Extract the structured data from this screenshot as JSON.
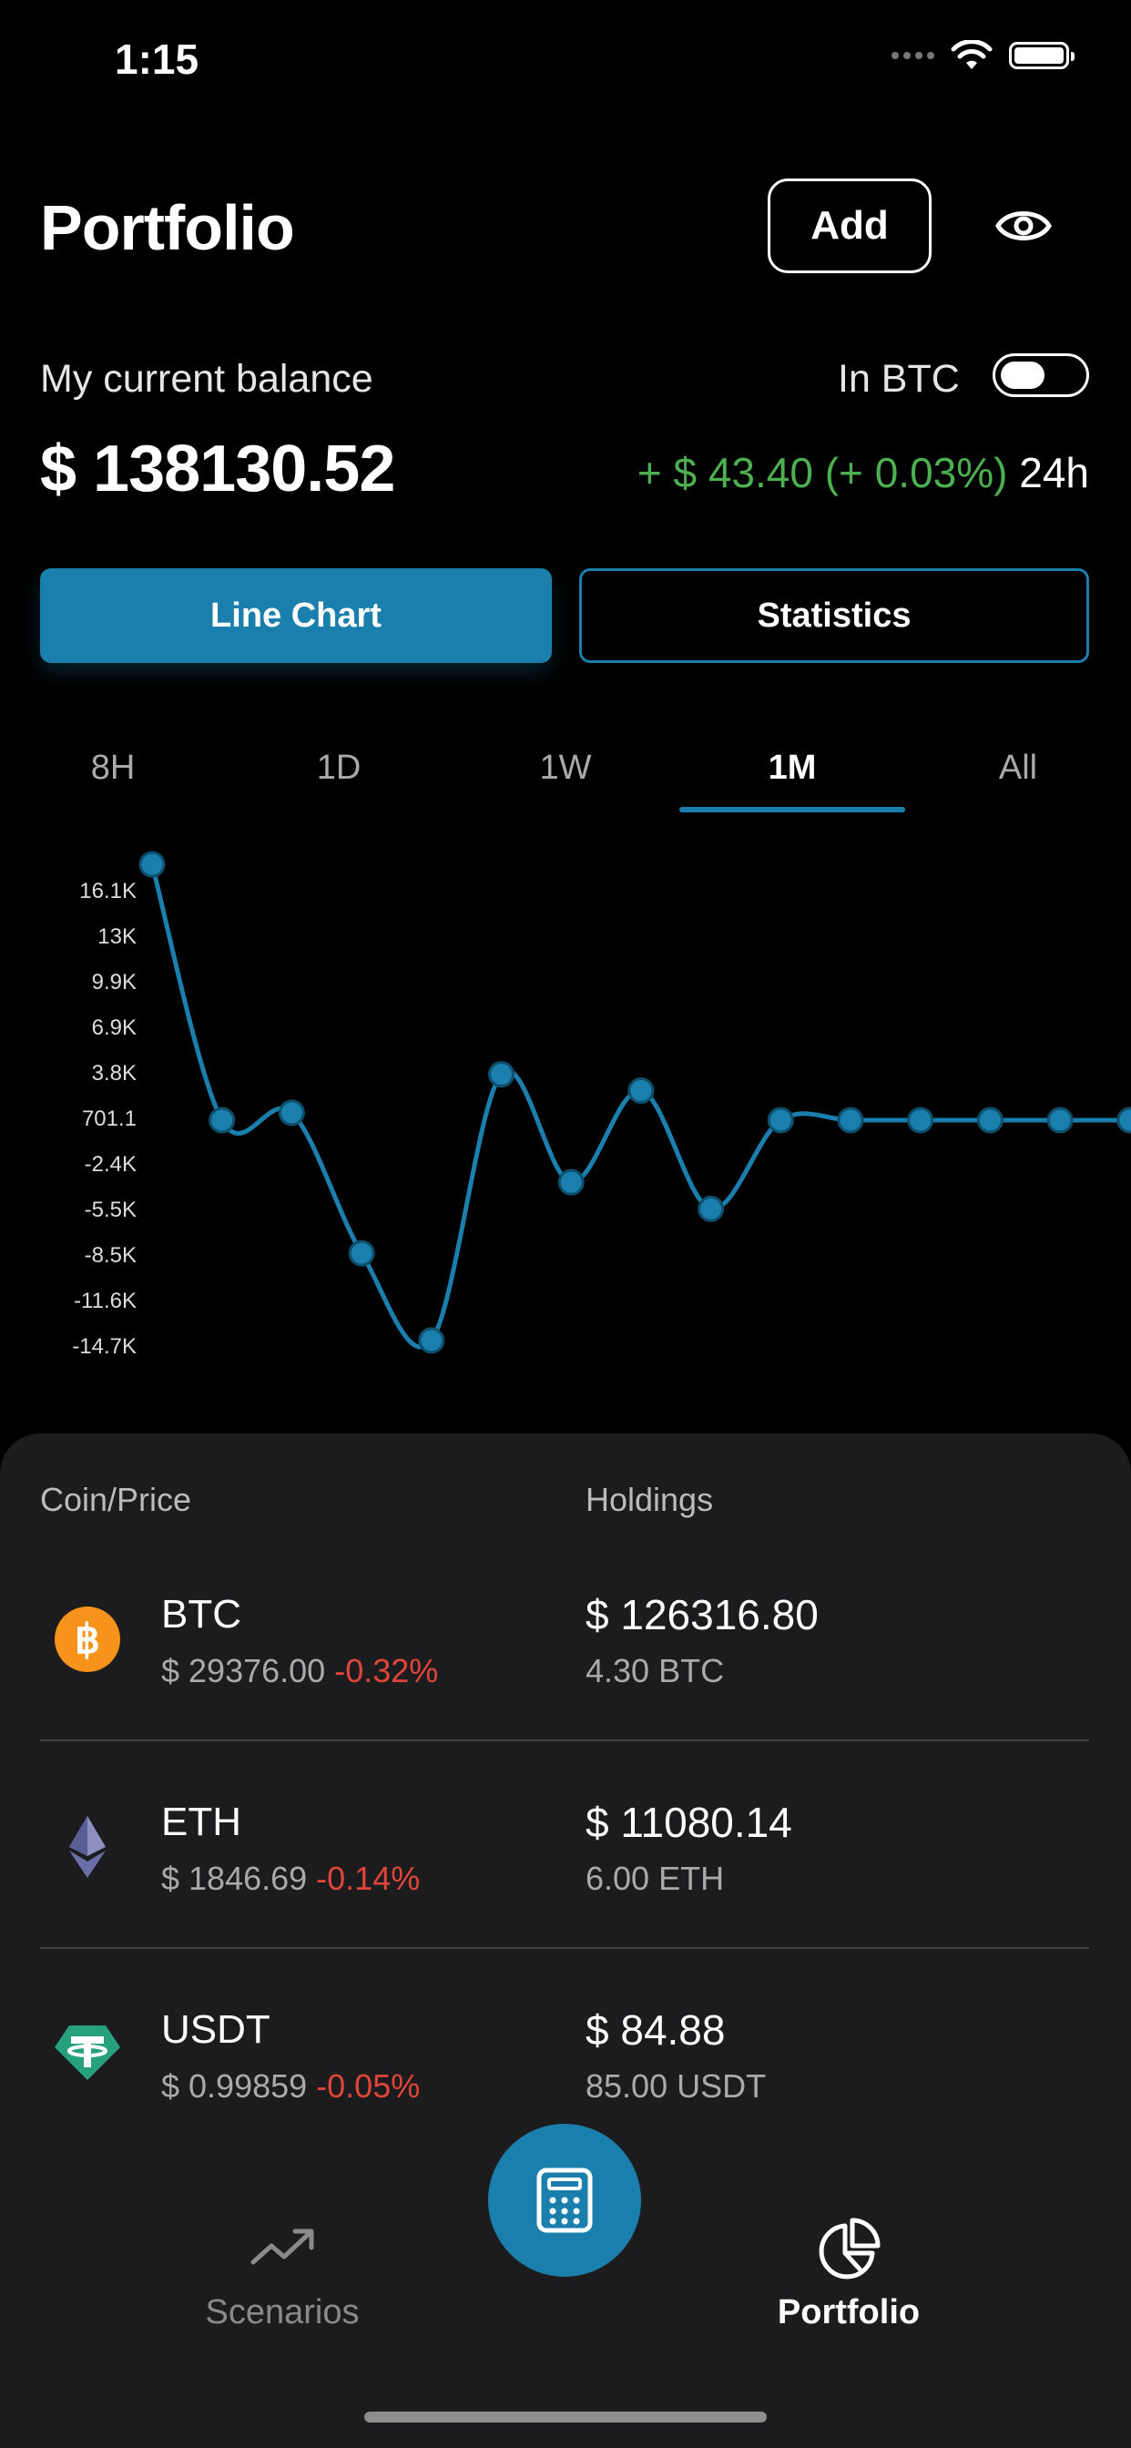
{
  "status_bar": {
    "time": "1:15"
  },
  "header": {
    "title": "Portfolio",
    "add_label": "Add"
  },
  "balance": {
    "label": "My current balance",
    "in_btc_label": "In BTC",
    "in_btc_enabled": false,
    "value": "$ 138130.52",
    "change": "+ $ 43.40 (+ 0.03%)",
    "change_period": "24h"
  },
  "view_tabs": {
    "line_chart": "Line Chart",
    "statistics": "Statistics",
    "selected": "Line Chart"
  },
  "periods": {
    "items": [
      "8H",
      "1D",
      "1W",
      "1M",
      "All"
    ],
    "selected": "1M"
  },
  "colors": {
    "accent": "#1a7fad",
    "positive": "#4caf50",
    "negative": "#e0453a",
    "panel": "#1c1c1e"
  },
  "chart_data": {
    "type": "line",
    "y_ticks": [
      "16.1K",
      "13K",
      "9.9K",
      "6.9K",
      "3.8K",
      "701.1",
      "-2.4K",
      "-5.5K",
      "-8.5K",
      "-11.6K",
      "-14.7K"
    ],
    "ylim": [
      -14700,
      16100
    ],
    "series": [
      {
        "values": [
          18000,
          701,
          1200,
          -8300,
          -14200,
          3800,
          -3500,
          2700,
          -5300,
          701,
          701,
          701,
          701,
          701,
          701
        ]
      }
    ]
  },
  "holdings": {
    "col_coin": "Coin/Price",
    "col_holdings": "Holdings",
    "rows": [
      {
        "symbol": "BTC",
        "price": "$ 29376.00",
        "change": "-0.32%",
        "value": "$ 126316.80",
        "amount": "4.30 BTC",
        "icon": "bitcoin-icon"
      },
      {
        "symbol": "ETH",
        "price": "$ 1846.69",
        "change": "-0.14%",
        "value": "$ 11080.14",
        "amount": "6.00 ETH",
        "icon": "ethereum-icon"
      },
      {
        "symbol": "USDT",
        "price": "$ 0.99859",
        "change": "-0.05%",
        "value": "$ 84.88",
        "amount": "85.00 USDT",
        "icon": "tether-icon"
      }
    ]
  },
  "nav": {
    "scenarios": "Scenarios",
    "portfolio": "Portfolio",
    "active": "Portfolio"
  }
}
